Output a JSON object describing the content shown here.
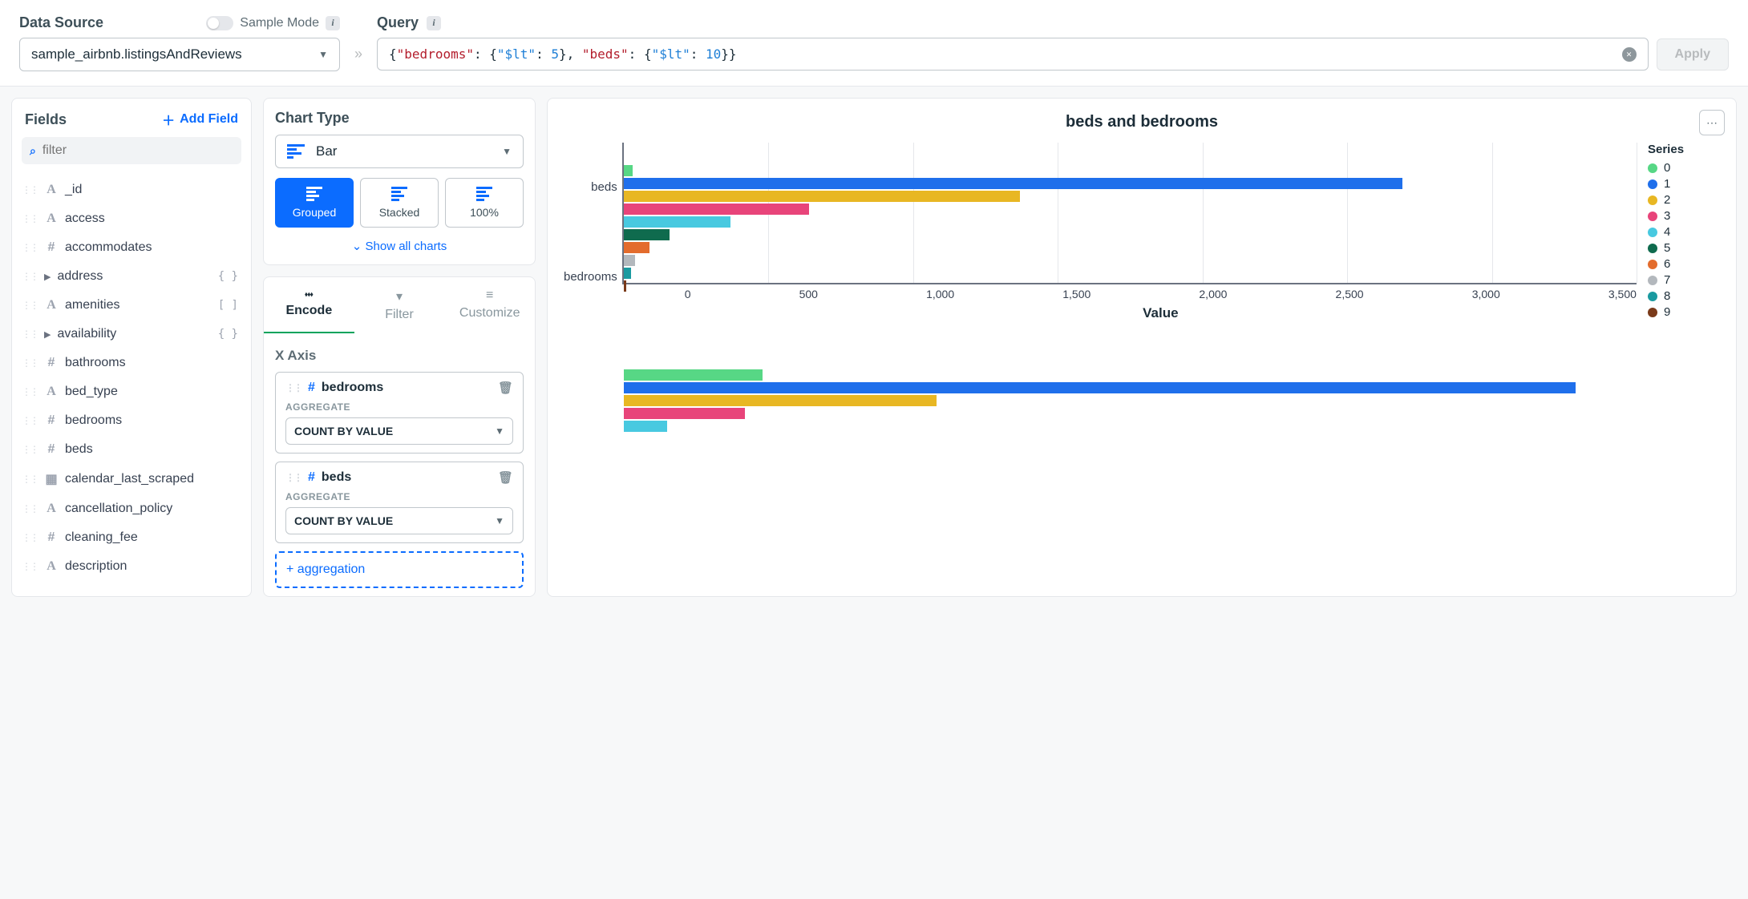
{
  "topbar": {
    "data_source_label": "Data Source",
    "sample_mode_label": "Sample Mode",
    "data_source_value": "sample_airbnb.listingsAndReviews",
    "query_label": "Query",
    "query_raw": "{\"bedrooms\": {\"$lt\": 5}, \"beds\": {\"$lt\": 10}}",
    "apply_label": "Apply"
  },
  "fields": {
    "title": "Fields",
    "add_label": "Add Field",
    "filter_placeholder": "filter",
    "items": [
      {
        "name": "_id",
        "type": "A"
      },
      {
        "name": "access",
        "type": "A"
      },
      {
        "name": "accommodates",
        "type": "#"
      },
      {
        "name": "address",
        "type": ">",
        "meta": "{ }"
      },
      {
        "name": "amenities",
        "type": "A",
        "meta": "[ ]"
      },
      {
        "name": "availability",
        "type": ">",
        "meta": "{ }"
      },
      {
        "name": "bathrooms",
        "type": "#"
      },
      {
        "name": "bed_type",
        "type": "A"
      },
      {
        "name": "bedrooms",
        "type": "#"
      },
      {
        "name": "beds",
        "type": "#"
      },
      {
        "name": "calendar_last_scraped",
        "type": "date"
      },
      {
        "name": "cancellation_policy",
        "type": "A"
      },
      {
        "name": "cleaning_fee",
        "type": "#"
      },
      {
        "name": "description",
        "type": "A"
      }
    ]
  },
  "chart_type": {
    "title": "Chart Type",
    "selected": "Bar",
    "modes": [
      "Grouped",
      "Stacked",
      "100%"
    ],
    "active_mode": "Grouped",
    "show_all": "Show all charts"
  },
  "encode": {
    "tabs": [
      "Encode",
      "Filter",
      "Customize"
    ],
    "active_tab": "Encode",
    "x_axis_label": "X Axis",
    "fields": [
      {
        "name": "bedrooms",
        "agg_label": "AGGREGATE",
        "agg_value": "COUNT BY VALUE"
      },
      {
        "name": "beds",
        "agg_label": "AGGREGATE",
        "agg_value": "COUNT BY VALUE"
      }
    ],
    "add_label": "+ aggregation"
  },
  "chart": {
    "title": "beds and bedrooms",
    "x_label": "Value",
    "legend_title": "Series",
    "x_max": 3500,
    "x_ticks": [
      "0",
      "500",
      "1,000",
      "1,500",
      "2,000",
      "2,500",
      "3,000",
      "3,500"
    ],
    "series_colors": {
      "0": "#57d785",
      "1": "#1f6feb",
      "2": "#e8b723",
      "3": "#e8447a",
      "4": "#48c9e0",
      "5": "#0f6b4e",
      "6": "#e36c2d",
      "7": "#b3b8bd",
      "8": "#1a9aa0",
      "9": "#7a3a1a"
    },
    "legend_order": [
      "0",
      "1",
      "2",
      "3",
      "4",
      "5",
      "6",
      "7",
      "8",
      "9"
    ],
    "groups": [
      {
        "label": "beds",
        "bars": [
          {
            "series": "0",
            "value": 30
          },
          {
            "series": "1",
            "value": 2690
          },
          {
            "series": "2",
            "value": 1370
          },
          {
            "series": "3",
            "value": 640
          },
          {
            "series": "4",
            "value": 370
          },
          {
            "series": "5",
            "value": 160
          },
          {
            "series": "6",
            "value": 90
          },
          {
            "series": "7",
            "value": 40
          },
          {
            "series": "8",
            "value": 25
          },
          {
            "series": "9",
            "value": 10
          }
        ]
      },
      {
        "label": "bedrooms",
        "bars": [
          {
            "series": "0",
            "value": 480
          },
          {
            "series": "1",
            "value": 3290
          },
          {
            "series": "2",
            "value": 1080
          },
          {
            "series": "3",
            "value": 420
          },
          {
            "series": "4",
            "value": 150
          }
        ]
      }
    ]
  }
}
